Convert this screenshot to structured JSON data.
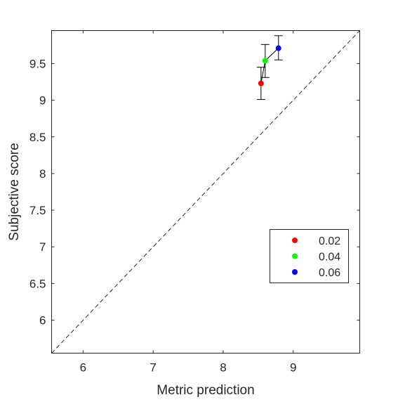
{
  "chart_data": {
    "type": "scatter",
    "xlabel": "Metric prediction",
    "ylabel": "Subjective score",
    "xlim": [
      5.55,
      9.95
    ],
    "ylim": [
      5.55,
      9.95
    ],
    "xticks": [
      6,
      7,
      8,
      9
    ],
    "xtick_labels": [
      "6",
      "7",
      "8",
      "9"
    ],
    "yticks": [
      6,
      6.5,
      7,
      7.5,
      8,
      8.5,
      9,
      9.5
    ],
    "ytick_labels": [
      "6",
      "6.5",
      "7",
      "7.5",
      "8",
      "8.5",
      "9",
      "9.5"
    ],
    "grid": false,
    "legend_position": "lower-right",
    "reference_line": {
      "style": "dashed",
      "from": [
        5.55,
        5.55
      ],
      "to": [
        9.95,
        9.95
      ]
    },
    "connecting_line": true,
    "series": [
      {
        "name": "0.02",
        "color": "#ff0000",
        "x": 8.54,
        "y": 9.23,
        "err_low": 9.01,
        "err_high": 9.45
      },
      {
        "name": "0.04",
        "color": "#00ff00",
        "x": 8.6,
        "y": 9.54,
        "err_low": 9.31,
        "err_high": 9.76
      },
      {
        "name": "0.06",
        "color": "#0000ff",
        "x": 8.79,
        "y": 9.71,
        "err_low": 9.55,
        "err_high": 9.88
      }
    ]
  }
}
